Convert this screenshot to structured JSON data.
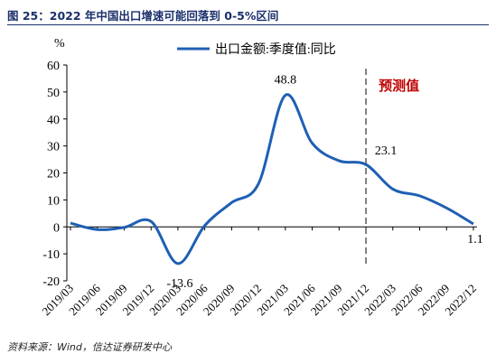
{
  "figure_title": "图 25：2022 年中国出口增速可能回落到 0-5%区间",
  "source": "资料来源：Wind，信达证券研发中心",
  "chart_data": {
    "type": "line",
    "ylabel": "%",
    "ylim": [
      -20,
      60
    ],
    "yticks": [
      -20,
      -10,
      0,
      10,
      20,
      30,
      40,
      50,
      60
    ],
    "categories": [
      "2019/03",
      "2019/06",
      "2019/09",
      "2019/12",
      "2020/03",
      "2020/06",
      "2020/09",
      "2020/12",
      "2021/03",
      "2021/06",
      "2021/09",
      "2021/12",
      "2022/03",
      "2022/06",
      "2022/09",
      "2022/12"
    ],
    "series": [
      {
        "name": "出口金额:季度值:同比",
        "color": "#1f5fb4",
        "values": [
          1.4,
          -1.0,
          -0.2,
          2.0,
          -13.6,
          0.5,
          9.0,
          16.0,
          48.8,
          31.0,
          24.5,
          23.1,
          14.0,
          11.5,
          7.0,
          1.1
        ]
      }
    ],
    "forecast_start": "2021/12",
    "forecast_label": "预测值",
    "data_labels": [
      {
        "category": "2020/03",
        "value": -13.6,
        "text": "-13.6"
      },
      {
        "category": "2021/03",
        "value": 48.8,
        "text": "48.8"
      },
      {
        "category": "2021/12",
        "value": 23.1,
        "text": "23.1"
      },
      {
        "category": "2022/12",
        "value": 1.1,
        "text": "1.1"
      }
    ],
    "legend_position": "top-center",
    "grid": false
  }
}
